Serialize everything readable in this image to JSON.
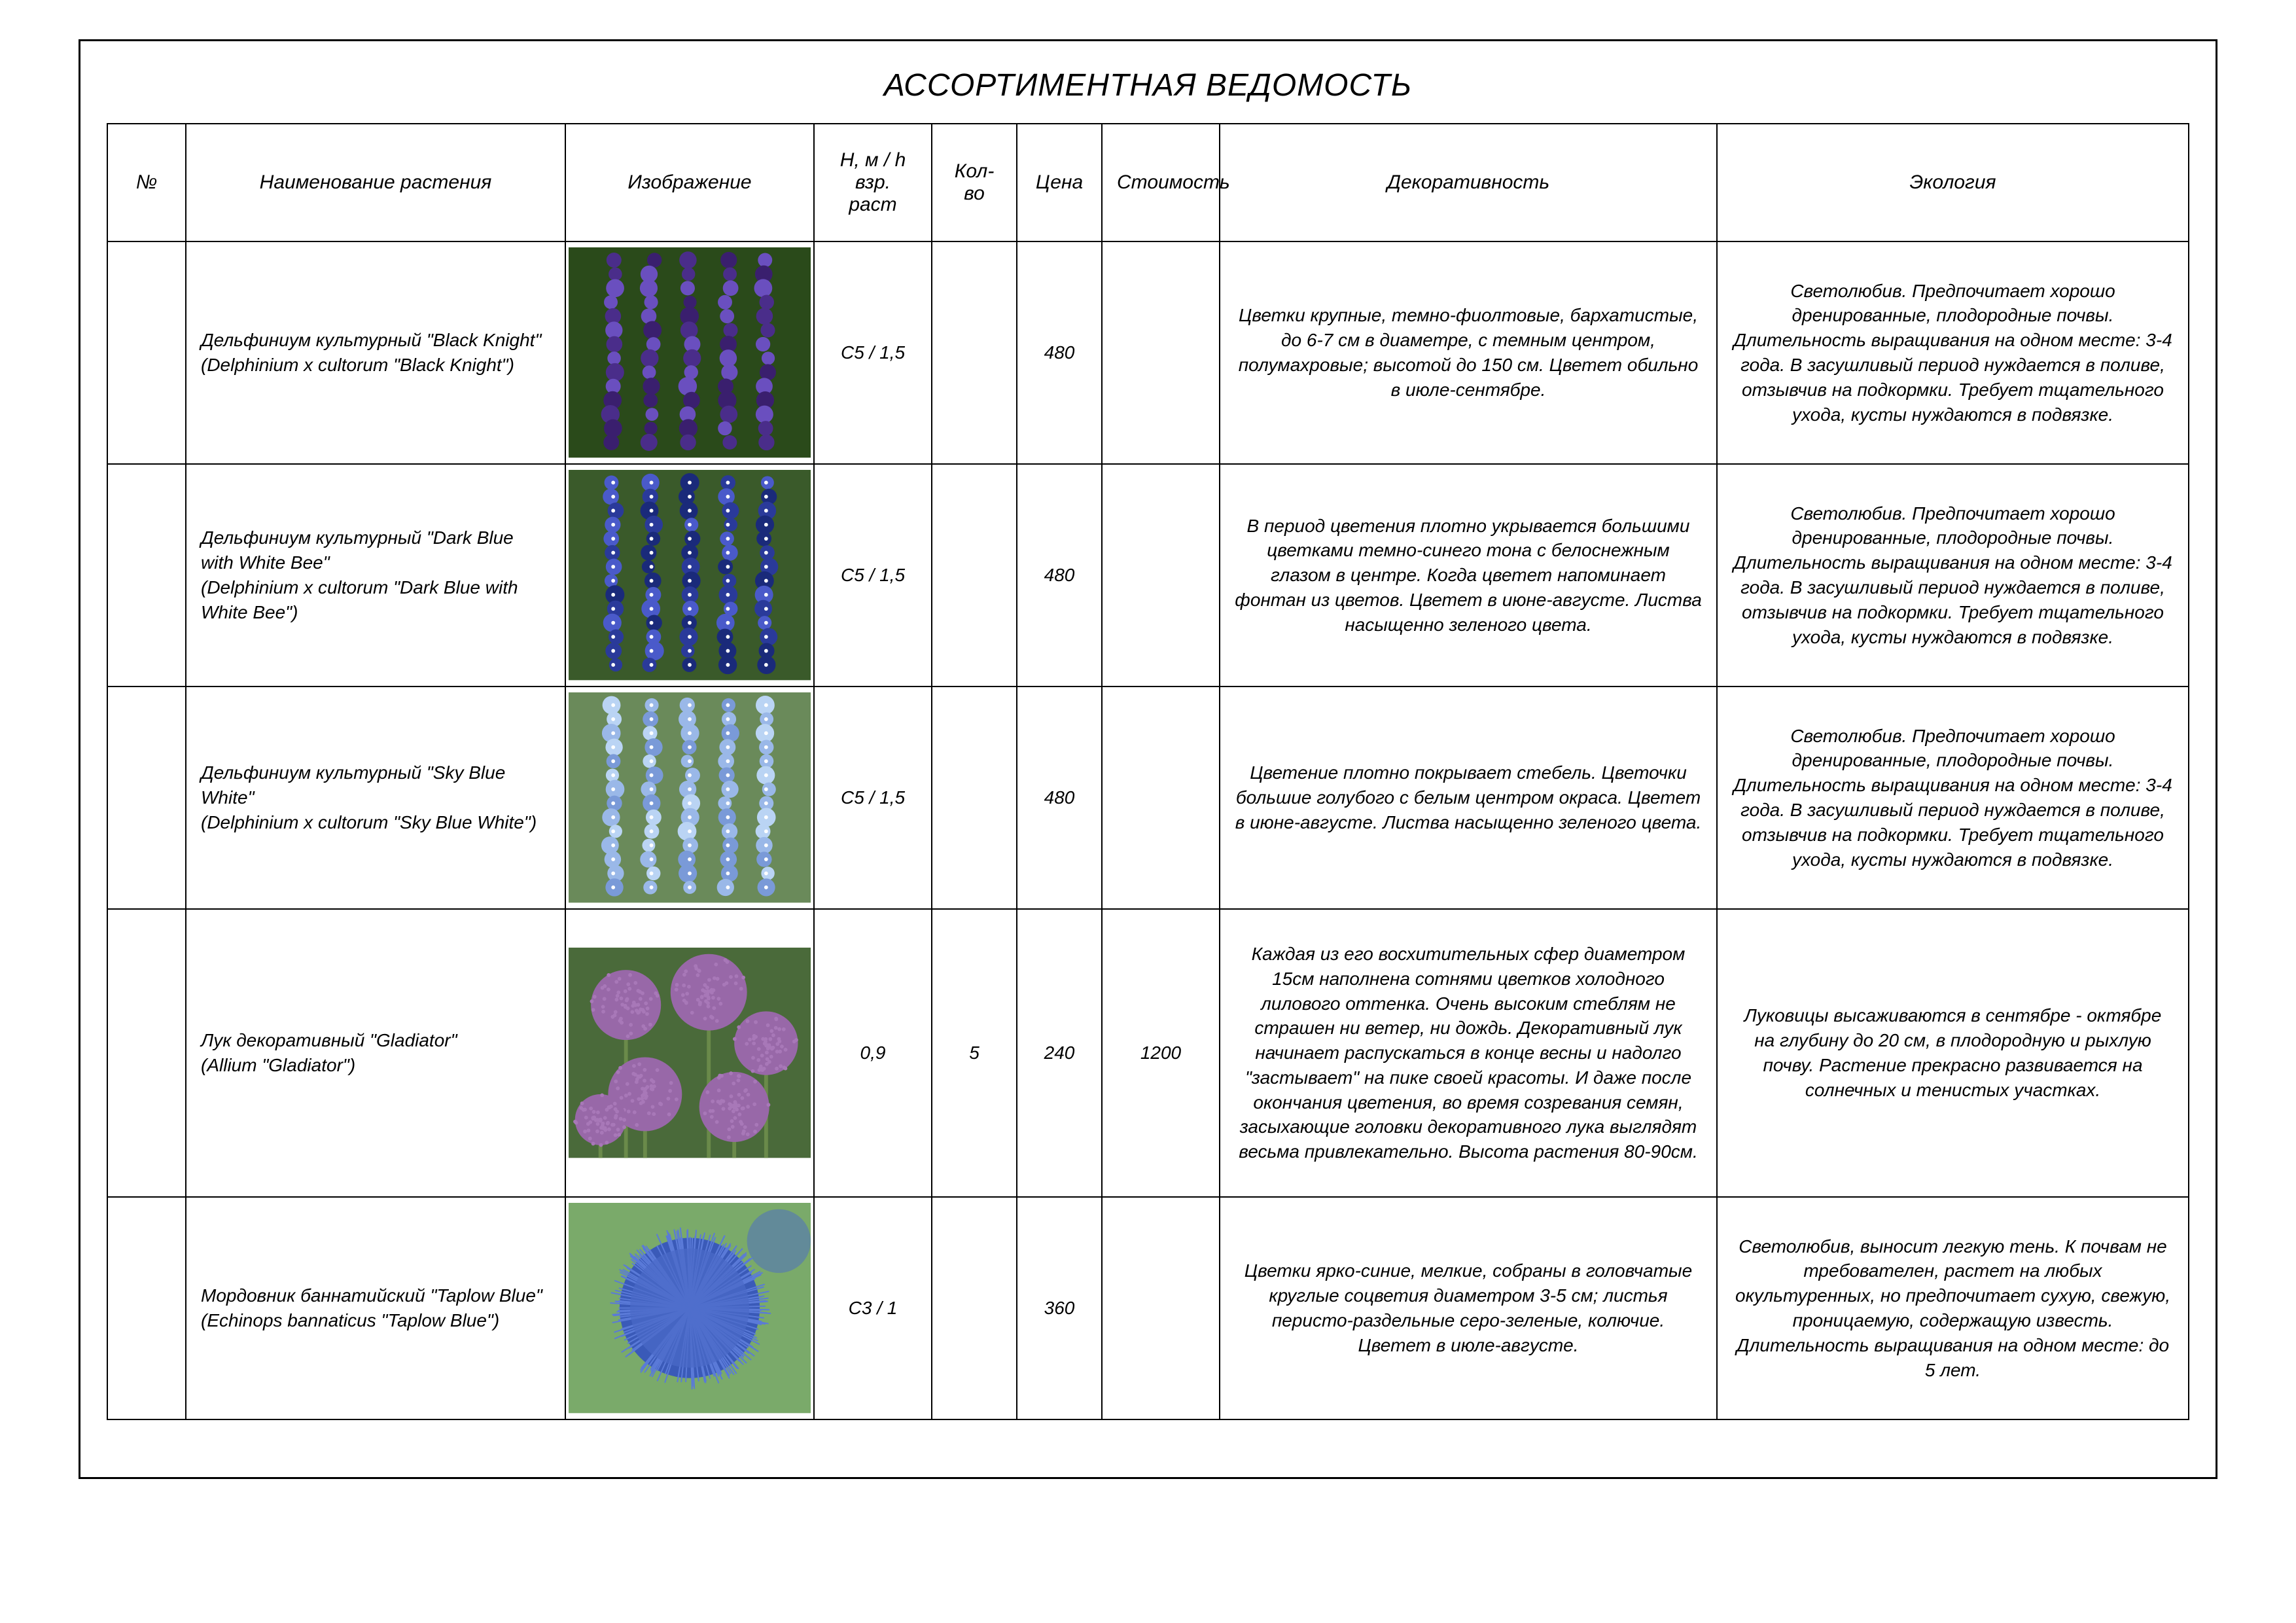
{
  "title": "АССОРТИМЕНТНАЯ ВЕДОМОСТЬ",
  "columns": {
    "num": "№",
    "name": "Наименование растения",
    "image": "Изображение",
    "height": "H, м / h взр. раст",
    "qty": "Кол-во",
    "price": "Цена",
    "cost": "Стоимость",
    "decor": "Декоративность",
    "ecology": "Экология"
  },
  "rows": [
    {
      "num": "",
      "name": "Дельфиниум культурный \"Black Knight\"\n(Delphinium x cultorum \"Black Knight\")",
      "height": "C5 / 1,5",
      "qty": "",
      "price": "480",
      "cost": "",
      "decor": "Цветки крупные, темно-фиолтовые, бархатистые, до 6-7 см в диаметре, с темным центром, полумахровые; высотой до 150 см. Цветет обильно в июле-сентябре.",
      "ecology": "Светолюбив. Предпочитает хорошо дренированные, плодородные почвы. Длительность выращивания на одном месте: 3-4 года. В засушливый период нуждается в поливе, отзывчив на подкормки. Требует тщательного ухода, кусты нуждаются в подвязке.",
      "img_colors": {
        "bg": "#2a4a1a",
        "flower": "#4a2d8a",
        "flower2": "#3a1f6e",
        "flower3": "#6a4fbf"
      }
    },
    {
      "num": "",
      "name": "Дельфиниум культурный \"Dark Blue with White Bee\"\n(Delphinium x cultorum \"Dark Blue with White Bee\")",
      "height": "C5 / 1,5",
      "qty": "",
      "price": "480",
      "cost": "",
      "decor": "В период цветения плотно укрывается большими цветками темно-синего тона с белоснежным глазом в центре. Когда цветет напоминает фонтан из цветов. Цветет в июне-августе. Листва насыщенно зеленого цвета.",
      "ecology": "Светолюбив. Предпочитает хорошо дренированные, плодородные почвы. Длительность выращивания на одном месте: 3-4 года. В засушливый период нуждается в поливе, отзывчив на подкормки. Требует тщательного ухода, кусты нуждаются в подвязке.",
      "img_colors": {
        "bg": "#3a5a2a",
        "flower": "#2a3a9a",
        "flower2": "#1a2a7a",
        "flower3": "#4a5aca",
        "eye": "#ffffff"
      }
    },
    {
      "num": "",
      "name": "Дельфиниум культурный \"Sky Blue White\"\n(Delphinium x cultorum \"Sky Blue White\")",
      "height": "C5 / 1,5",
      "qty": "",
      "price": "480",
      "cost": "",
      "decor": "Цветение плотно покрывает стебель. Цветочки большие голубого с белым центром окраса. Цветет в июне-августе. Листва насыщенно зеленого цвета.",
      "ecology": "Светолюбив. Предпочитает хорошо дренированные, плодородные почвы. Длительность выращивания на одном месте: 3-4 года. В засушливый период нуждается в поливе, отзывчив на подкормки. Требует тщательного ухода, кусты нуждаются в подвязке.",
      "img_colors": {
        "bg": "#6a8a5a",
        "flower": "#9ab8e8",
        "flower2": "#7a9ad8",
        "flower3": "#bad4f4",
        "eye": "#ffffff"
      }
    },
    {
      "num": "",
      "name": "Лук декоративный \"Gladiator\"\n(Allium \"Gladiator\")",
      "height": "0,9",
      "qty": "5",
      "price": "240",
      "cost": "1200",
      "decor": "Каждая из его восхитительных сфер диаметром 15см наполнена сотнями цветков холодного лилового оттенка. Очень высоким стеблям не страшен ни ветер, ни дождь. Декоративный лук начинает распускаться в конце весны и надолго \"застывает\" на пике своей красоты. И даже после окончания цветения, во время созревания семян, засыхающие головки декоративного лука выглядят весьма привлекательно. Высота растения 80-90см.",
      "ecology": "Луковицы высаживаются в сентябре - октябре на глубину до 20 см, в плодородную и рыхлую почву. Растение прекрасно развивается на солнечных и тенистых участках.",
      "tall": true,
      "img_colors": {
        "bg": "#4a6a3a",
        "ball": "#a878b8",
        "ball2": "#9868a8",
        "stem": "#6a8a4a"
      }
    },
    {
      "num": "",
      "name": "Мордовник баннатийский \"Taplow Blue\"\n(Echinops bannaticus \"Taplow Blue\")",
      "height": "C3 / 1",
      "qty": "",
      "price": "360",
      "cost": "",
      "decor": "Цветки ярко-синие, мелкие, собраны в головчатые круглые соцветия диаметром 3-5 см; листья перисто-раздельные серо-зеленые, колючие. Цветет в июле-августе.",
      "ecology": "Светолюбив, выносит легкую тень. К почвам не требователен, растет на любых окультуренных, но предпочитает сухую, свежую, проницаемую, содержащую известь. Длительность выращивания на одном месте: до 5 лет.",
      "img_colors": {
        "bg": "#7aaa6a",
        "ball": "#4a6ac8",
        "ball2": "#3a5ab8",
        "spike": "#5a7ad8"
      }
    }
  ]
}
